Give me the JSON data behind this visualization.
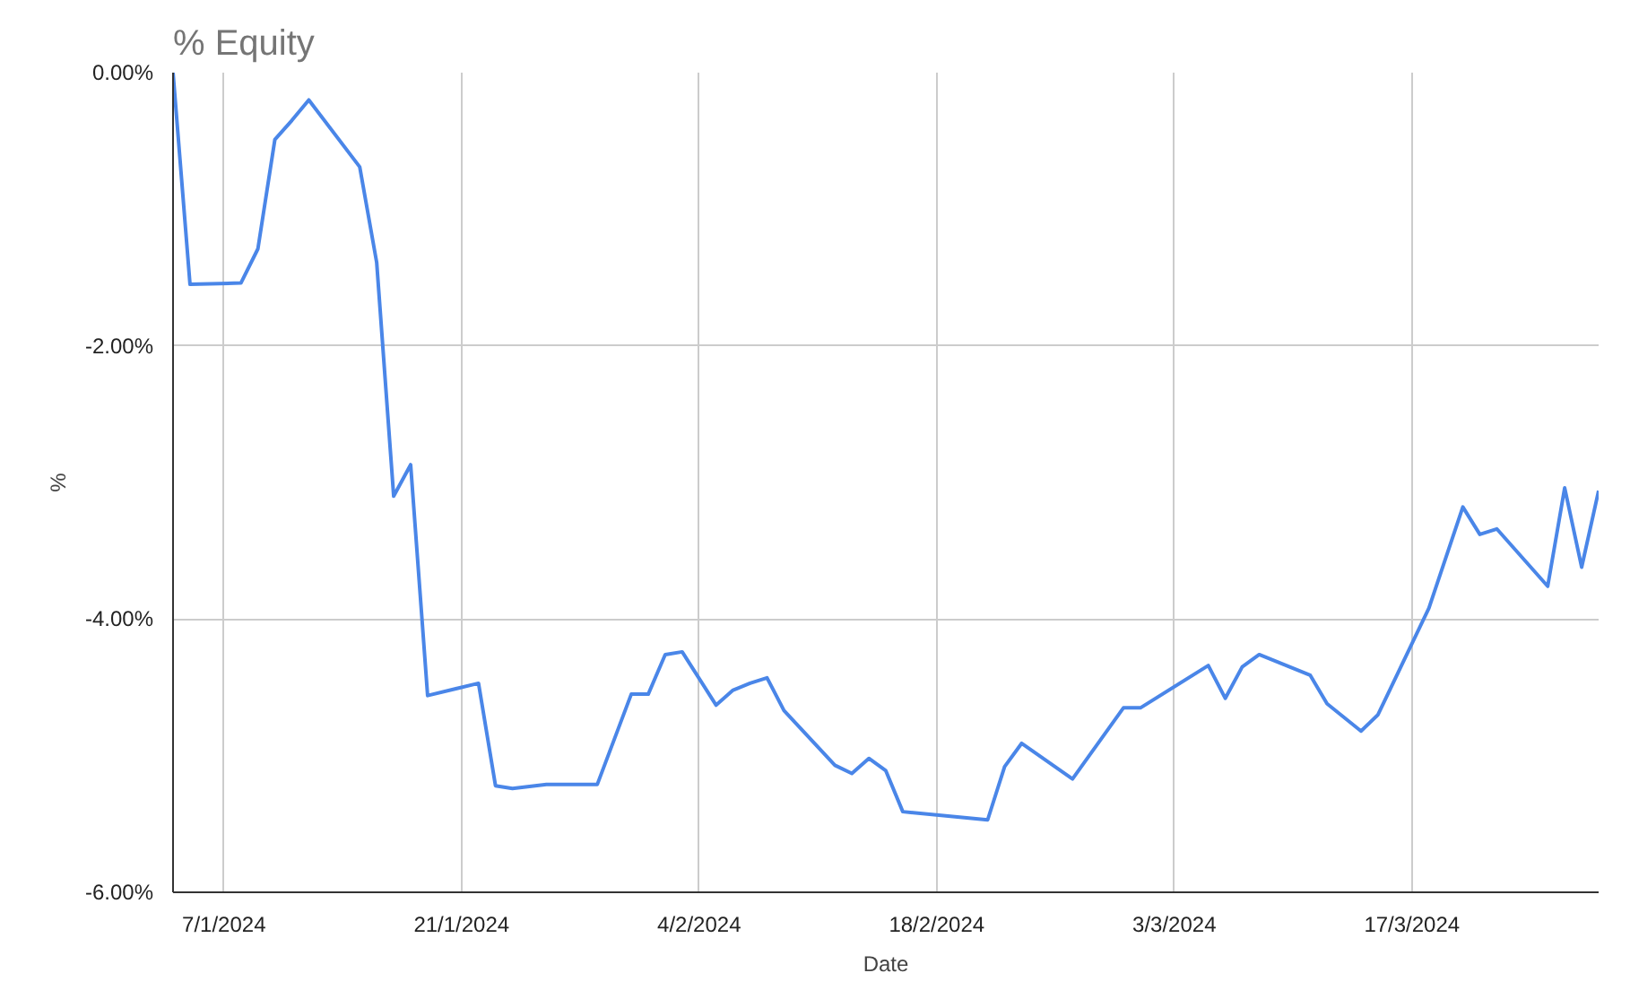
{
  "chart_data": {
    "type": "line",
    "title": "% Equity",
    "xlabel": "Date",
    "ylabel": "%",
    "x": [
      "2024-01-04",
      "2024-01-05",
      "2024-01-08",
      "2024-01-09",
      "2024-01-10",
      "2024-01-11",
      "2024-01-12",
      "2024-01-15",
      "2024-01-16",
      "2024-01-17",
      "2024-01-18",
      "2024-01-19",
      "2024-01-22",
      "2024-01-23",
      "2024-01-24",
      "2024-01-26",
      "2024-01-29",
      "2024-01-31",
      "2024-02-01",
      "2024-02-02",
      "2024-02-03",
      "2024-02-05",
      "2024-02-06",
      "2024-02-07",
      "2024-02-08",
      "2024-02-09",
      "2024-02-12",
      "2024-02-13",
      "2024-02-14",
      "2024-02-15",
      "2024-02-16",
      "2024-02-21",
      "2024-02-22",
      "2024-02-23",
      "2024-02-26",
      "2024-02-29",
      "2024-03-01",
      "2024-03-05",
      "2024-03-06",
      "2024-03-07",
      "2024-03-08",
      "2024-03-11",
      "2024-03-12",
      "2024-03-14",
      "2024-03-15",
      "2024-03-18",
      "2024-03-20",
      "2024-03-21",
      "2024-03-22",
      "2024-03-25",
      "2024-03-26",
      "2024-03-27",
      "2024-03-28"
    ],
    "series": [
      {
        "color": "#4a86e8",
        "values": [
          0,
          -1.55,
          -1.54,
          -1.29,
          -0.49,
          -0.35,
          -0.2,
          -0.69,
          -1.39,
          -3.1,
          -2.87,
          -4.56,
          -4.47,
          -5.22,
          -5.24,
          -5.21,
          -5.21,
          -4.55,
          -4.55,
          -4.26,
          -4.24,
          -4.63,
          -4.52,
          -4.47,
          -4.43,
          -4.67,
          -5.07,
          -5.13,
          -5.02,
          -5.11,
          -5.41,
          -5.47,
          -5.08,
          -4.91,
          -5.17,
          -4.65,
          -4.65,
          -4.34,
          -4.58,
          -4.35,
          -4.26,
          -4.41,
          -4.62,
          -4.82,
          -4.7,
          -3.92,
          -3.18,
          -3.38,
          -3.34,
          -3.76,
          -3.04,
          -3.62,
          -3.06
        ]
      }
    ],
    "xlim": [
      "2024-01-04",
      "2024-03-28"
    ],
    "xticks": [
      {
        "value": "2024-01-07",
        "label": "7/1/2024"
      },
      {
        "value": "2024-01-21",
        "label": "21/1/2024"
      },
      {
        "value": "2024-02-04",
        "label": "4/2/2024"
      },
      {
        "value": "2024-02-18",
        "label": "18/2/2024"
      },
      {
        "value": "2024-03-03",
        "label": "3/3/2024"
      },
      {
        "value": "2024-03-17",
        "label": "17/3/2024"
      }
    ],
    "ylim": [
      -6,
      0
    ],
    "yticks": [
      {
        "value": 0,
        "label": "0.00%"
      },
      {
        "value": -2,
        "label": "-2.00%"
      },
      {
        "value": -4,
        "label": "-4.00%"
      },
      {
        "value": -6,
        "label": "-6.00%"
      }
    ],
    "grid": true,
    "marker": "none",
    "line_style": "solid"
  }
}
